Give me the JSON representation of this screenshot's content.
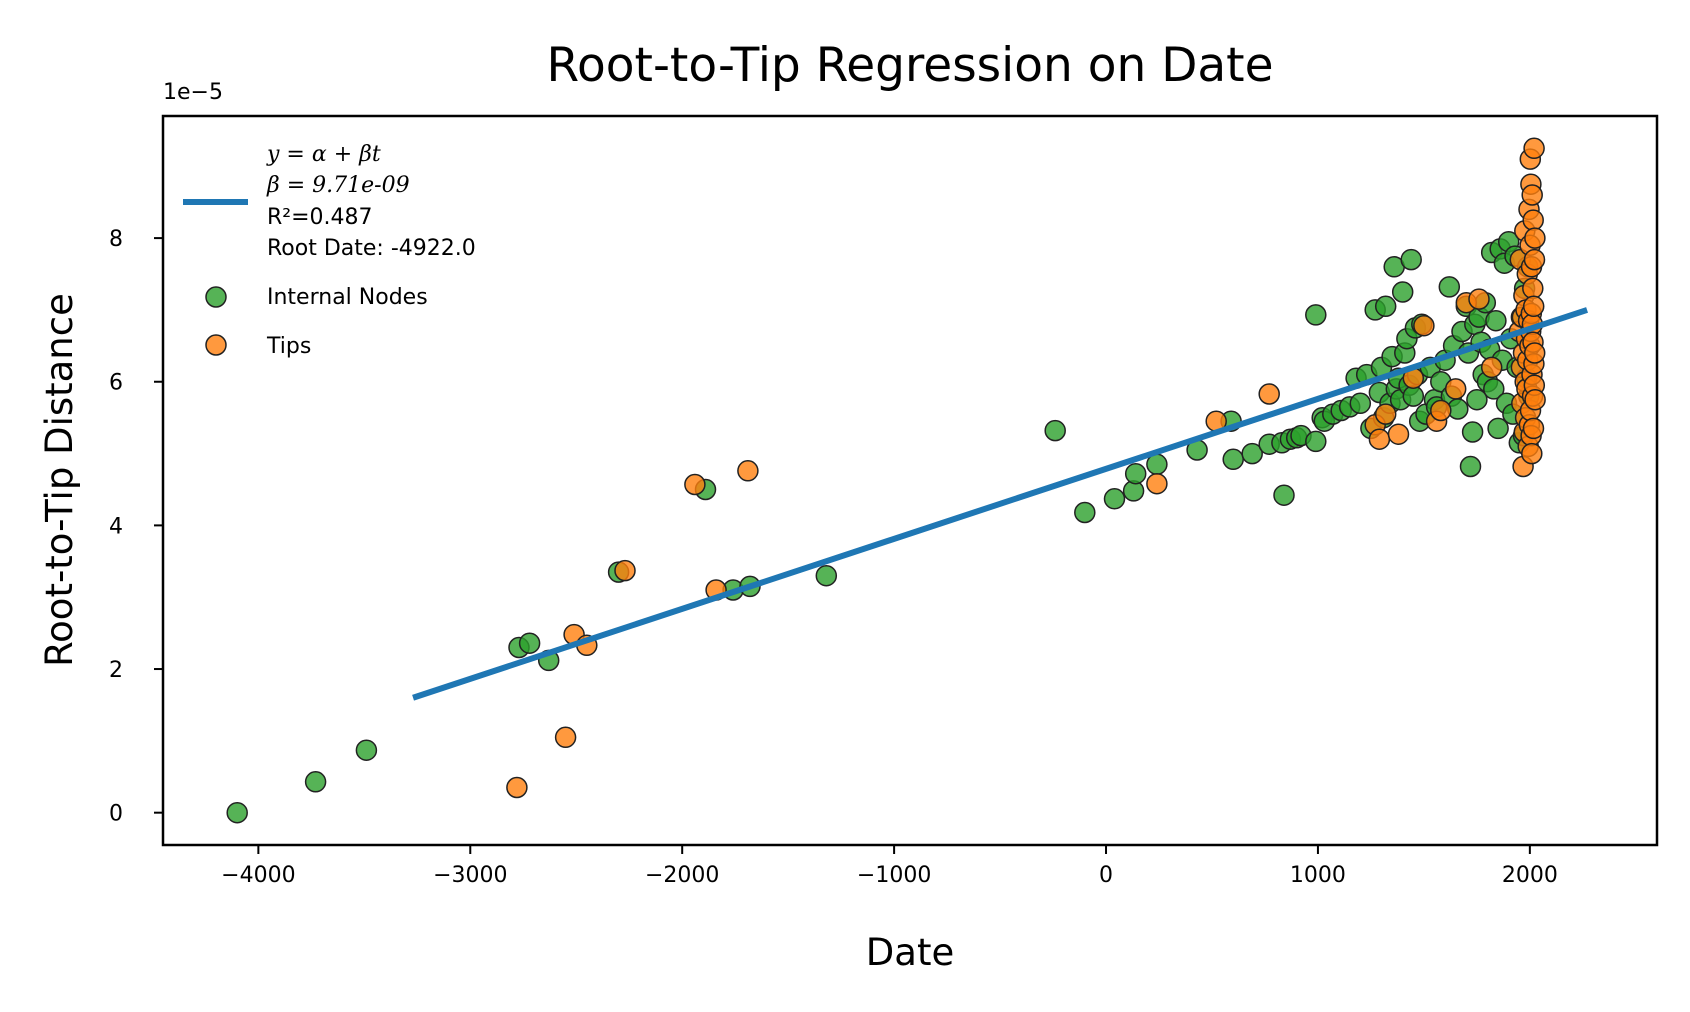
{
  "chart_data": {
    "type": "scatter",
    "title": "Root-to-Tip Regression on Date",
    "xlabel": "Date",
    "ylabel": "Root-to-Tip Distance",
    "y_scale_label": "1e−5",
    "xlim": [
      -4450,
      2600
    ],
    "ylim": [
      -0.45,
      9.7
    ],
    "x_ticks": [
      -4000,
      -3000,
      -2000,
      -1000,
      0,
      1000,
      2000
    ],
    "x_tick_labels": [
      "−4000",
      "−3000",
      "−2000",
      "−1000",
      "0",
      "1000",
      "2000"
    ],
    "y_ticks": [
      0,
      2,
      4,
      6,
      8
    ],
    "y_tick_labels": [
      "0",
      "2",
      "4",
      "6",
      "8"
    ],
    "grid": false,
    "legend_position": "top-left",
    "regression": {
      "x": [
        -3270,
        2270
      ],
      "y": [
        1.6,
        7.0
      ],
      "color": "#1f77b4",
      "legend_lines": [
        "y = α + βt",
        "β = 9.71e-09",
        "R²=0.487",
        "Root Date: -4922.0"
      ]
    },
    "series": [
      {
        "name": "Internal Nodes",
        "color": "#2ca02c",
        "points": [
          [
            -4100,
            0.0
          ],
          [
            -3730,
            0.43
          ],
          [
            -3490,
            0.87
          ],
          [
            -2770,
            2.3
          ],
          [
            -2720,
            2.36
          ],
          [
            -2630,
            2.12
          ],
          [
            -2300,
            3.35
          ],
          [
            -1890,
            4.5
          ],
          [
            -1760,
            3.1
          ],
          [
            -1680,
            3.15
          ],
          [
            -1320,
            3.3
          ],
          [
            -240,
            5.32
          ],
          [
            -100,
            4.18
          ],
          [
            40,
            4.37
          ],
          [
            130,
            4.48
          ],
          [
            140,
            4.72
          ],
          [
            240,
            4.85
          ],
          [
            430,
            5.05
          ],
          [
            590,
            5.45
          ],
          [
            600,
            4.92
          ],
          [
            690,
            5.0
          ],
          [
            770,
            5.13
          ],
          [
            830,
            5.15
          ],
          [
            840,
            4.42
          ],
          [
            870,
            5.2
          ],
          [
            900,
            5.22
          ],
          [
            920,
            5.25
          ],
          [
            990,
            5.17
          ],
          [
            990,
            6.93
          ],
          [
            1020,
            5.5
          ],
          [
            1030,
            5.45
          ],
          [
            1070,
            5.55
          ],
          [
            1110,
            5.6
          ],
          [
            1150,
            5.65
          ],
          [
            1180,
            6.05
          ],
          [
            1200,
            5.7
          ],
          [
            1230,
            6.1
          ],
          [
            1250,
            5.35
          ],
          [
            1270,
            7.0
          ],
          [
            1290,
            5.85
          ],
          [
            1300,
            6.2
          ],
          [
            1310,
            5.5
          ],
          [
            1320,
            7.05
          ],
          [
            1340,
            5.7
          ],
          [
            1350,
            6.35
          ],
          [
            1360,
            7.6
          ],
          [
            1370,
            5.9
          ],
          [
            1380,
            6.05
          ],
          [
            1390,
            5.75
          ],
          [
            1400,
            7.25
          ],
          [
            1410,
            6.4
          ],
          [
            1420,
            6.6
          ],
          [
            1430,
            5.95
          ],
          [
            1440,
            7.7
          ],
          [
            1450,
            5.8
          ],
          [
            1460,
            6.75
          ],
          [
            1470,
            6.1
          ],
          [
            1480,
            5.45
          ],
          [
            1490,
            6.8
          ],
          [
            1510,
            5.55
          ],
          [
            1530,
            6.2
          ],
          [
            1550,
            5.75
          ],
          [
            1560,
            5.65
          ],
          [
            1580,
            6.0
          ],
          [
            1600,
            6.3
          ],
          [
            1620,
            7.32
          ],
          [
            1630,
            5.8
          ],
          [
            1640,
            6.5
          ],
          [
            1660,
            5.62
          ],
          [
            1680,
            6.7
          ],
          [
            1700,
            7.05
          ],
          [
            1710,
            6.4
          ],
          [
            1720,
            4.82
          ],
          [
            1730,
            5.3
          ],
          [
            1740,
            6.8
          ],
          [
            1750,
            5.75
          ],
          [
            1760,
            6.9
          ],
          [
            1770,
            6.55
          ],
          [
            1780,
            6.1
          ],
          [
            1790,
            7.1
          ],
          [
            1800,
            6.0
          ],
          [
            1810,
            6.45
          ],
          [
            1820,
            7.8
          ],
          [
            1830,
            5.9
          ],
          [
            1840,
            6.85
          ],
          [
            1850,
            5.35
          ],
          [
            1860,
            7.85
          ],
          [
            1870,
            6.3
          ],
          [
            1880,
            7.65
          ],
          [
            1890,
            5.7
          ],
          [
            1900,
            7.95
          ],
          [
            1910,
            6.6
          ],
          [
            1920,
            5.55
          ],
          [
            1930,
            7.75
          ],
          [
            1940,
            6.2
          ],
          [
            1950,
            5.15
          ],
          [
            1960,
            6.9
          ],
          [
            1970,
            5.25
          ],
          [
            1975,
            7.3
          ],
          [
            1985,
            6.05
          ],
          [
            1990,
            7.6
          ],
          [
            1995,
            5.8
          ]
        ]
      },
      {
        "name": "Tips",
        "color": "#ff7f0e",
        "points": [
          [
            -2780,
            0.35
          ],
          [
            -2550,
            1.05
          ],
          [
            -2510,
            2.48
          ],
          [
            -2450,
            2.33
          ],
          [
            -2270,
            3.37
          ],
          [
            -1940,
            4.57
          ],
          [
            -1690,
            4.76
          ],
          [
            -1840,
            3.1
          ],
          [
            240,
            4.58
          ],
          [
            520,
            5.45
          ],
          [
            770,
            5.83
          ],
          [
            1270,
            5.4
          ],
          [
            1290,
            5.2
          ],
          [
            1320,
            5.55
          ],
          [
            1380,
            5.27
          ],
          [
            1450,
            6.05
          ],
          [
            1500,
            6.78
          ],
          [
            1560,
            5.45
          ],
          [
            1580,
            5.6
          ],
          [
            1650,
            5.9
          ],
          [
            1700,
            7.1
          ],
          [
            1760,
            7.15
          ],
          [
            1820,
            6.2
          ],
          [
            1950,
            6.7
          ],
          [
            1955,
            7.7
          ],
          [
            1960,
            6.2
          ],
          [
            1962,
            5.7
          ],
          [
            1965,
            6.9
          ],
          [
            1968,
            4.82
          ],
          [
            1970,
            6.4
          ],
          [
            1972,
            7.2
          ],
          [
            1974,
            5.3
          ],
          [
            1976,
            8.1
          ],
          [
            1978,
            6.0
          ],
          [
            1980,
            5.5
          ],
          [
            1982,
            7.0
          ],
          [
            1984,
            6.6
          ],
          [
            1986,
            5.9
          ],
          [
            1988,
            7.5
          ],
          [
            1990,
            6.3
          ],
          [
            1992,
            5.1
          ],
          [
            1994,
            6.85
          ],
          [
            1996,
            8.4
          ],
          [
            1998,
            5.4
          ],
          [
            2000,
            6.5
          ],
          [
            2001,
            7.9
          ],
          [
            2002,
            9.1
          ],
          [
            2003,
            5.6
          ],
          [
            2004,
            6.7
          ],
          [
            2005,
            8.75
          ],
          [
            2006,
            5.25
          ],
          [
            2007,
            6.95
          ],
          [
            2008,
            7.6
          ],
          [
            2009,
            5.0
          ],
          [
            2010,
            6.1
          ],
          [
            2011,
            8.6
          ],
          [
            2012,
            6.8
          ],
          [
            2013,
            5.8
          ],
          [
            2014,
            7.3
          ],
          [
            2015,
            6.55
          ],
          [
            2016,
            8.25
          ],
          [
            2017,
            5.35
          ],
          [
            2018,
            7.05
          ],
          [
            2019,
            6.25
          ],
          [
            2020,
            9.25
          ],
          [
            2021,
            5.95
          ],
          [
            2022,
            7.7
          ],
          [
            2023,
            6.4
          ],
          [
            2024,
            8.0
          ],
          [
            2025,
            5.75
          ]
        ]
      }
    ]
  }
}
